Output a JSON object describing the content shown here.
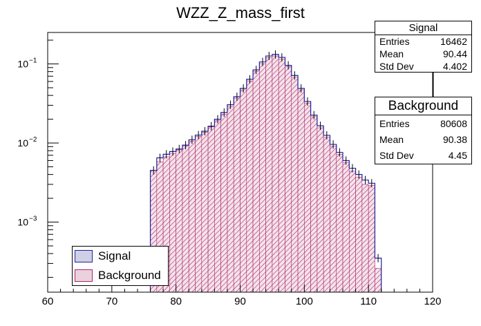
{
  "chart_data": {
    "type": "histogram",
    "title": "WZZ_Z_mass_first",
    "xlabel": "",
    "ylabel": "",
    "xlim": [
      60,
      120
    ],
    "ylim": [
      0.00013,
      0.25
    ],
    "yscale": "log",
    "x_ticks": [
      "60",
      "70",
      "80",
      "90",
      "100",
      "110",
      "120"
    ],
    "y_ticks": [
      {
        "mantissa": "10",
        "exponent": "−1",
        "value": 0.1
      },
      {
        "mantissa": "10",
        "exponent": "−2",
        "value": 0.01
      },
      {
        "mantissa": "10",
        "exponent": "−3",
        "value": 0.001
      }
    ],
    "bin_edges_start": 76,
    "bin_width": 1,
    "series": [
      {
        "name": "Background",
        "color": "#b0206a",
        "values": [
          0.0045,
          0.0058,
          0.0067,
          0.0074,
          0.0082,
          0.0092,
          0.0106,
          0.0121,
          0.0137,
          0.016,
          0.0191,
          0.0232,
          0.029,
          0.037,
          0.047,
          0.061,
          0.08,
          0.101,
          0.12,
          0.126,
          0.115,
          0.092,
          0.068,
          0.047,
          0.032,
          0.0215,
          0.0156,
          0.0118,
          0.0091,
          0.0072,
          0.0057,
          0.0044,
          0.0037,
          0.003,
          0.0029,
          0.00026
        ]
      },
      {
        "name": "Signal",
        "color": "#1f1f9c",
        "values": [
          0.0045,
          0.0065,
          0.0072,
          0.0078,
          0.0084,
          0.0094,
          0.011,
          0.0126,
          0.0141,
          0.0163,
          0.02,
          0.0243,
          0.0305,
          0.0385,
          0.049,
          0.064,
          0.084,
          0.106,
          0.126,
          0.132,
          0.121,
          0.096,
          0.0715,
          0.049,
          0.0335,
          0.0225,
          0.0165,
          0.0125,
          0.0096,
          0.0076,
          0.006,
          0.0048,
          0.004,
          0.0034,
          0.0031,
          0.00035
        ]
      }
    ]
  },
  "stats": [
    {
      "title": "Signal",
      "rows": [
        {
          "label": "Entries",
          "value": "16462"
        },
        {
          "label": "Mean",
          "value": "90.44"
        },
        {
          "label": "Std Dev",
          "value": "4.402"
        }
      ]
    },
    {
      "title": "Background",
      "rows": [
        {
          "label": "Entries",
          "value": "80608"
        },
        {
          "label": "Mean",
          "value": "90.38"
        },
        {
          "label": "Std Dev",
          "value": "4.45"
        }
      ]
    }
  ],
  "legend": [
    {
      "label": "Signal",
      "fill": "#cfcfe6",
      "border": "#1f1f9c"
    },
    {
      "label": "Background",
      "fill": "#ead2dc",
      "border": "#b0206a"
    }
  ]
}
